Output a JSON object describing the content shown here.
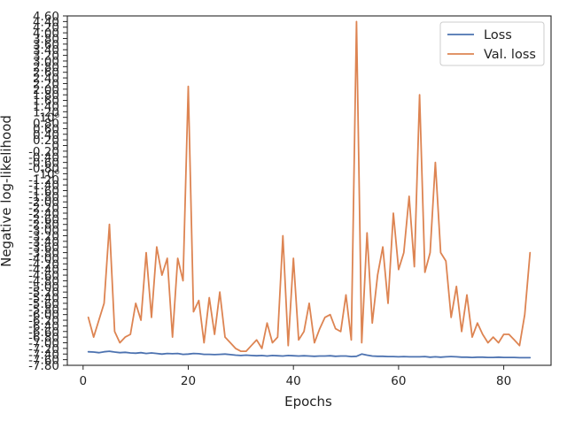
{
  "chart_data": {
    "type": "line",
    "title": "",
    "xlabel": "Epochs",
    "ylabel": "Negative log-likelihood",
    "xlim": [
      -3,
      89
    ],
    "xticks": [
      0,
      20,
      40,
      60,
      80
    ],
    "xtick_labels": [
      "0",
      "20",
      "40",
      "60",
      "80"
    ],
    "ylim": [
      -7.8,
      4.6
    ],
    "yscale": "symlog-like (garbled, overlapping tick labels)",
    "ytick_values": [
      -7.8,
      -7.6,
      -7.4,
      -7.2,
      -7.0,
      -6.8,
      -6.6,
      -6.4,
      -6.2,
      -6.0,
      -5.8,
      -5.6,
      -5.4,
      -5.2,
      -5.0,
      -4.8,
      -4.6,
      -4.4,
      -4.2,
      -4.0,
      -3.8,
      -3.6,
      -3.4,
      -3.2,
      -3.0,
      -2.8,
      -2.6,
      -2.4,
      -2.2,
      -2.0,
      -1.8,
      -1.6,
      -1.4,
      -1.2,
      -1.0,
      -0.8,
      -0.6,
      -0.4,
      -0.2,
      0,
      0.2,
      0.4,
      0.6,
      0.8,
      1.0,
      1.2,
      1.4,
      1.6,
      1.8,
      2.0,
      2.2,
      2.4,
      2.6,
      2.8,
      3.0,
      3.2,
      3.4,
      3.6,
      3.8,
      4.0,
      4.2,
      4.4,
      4.6
    ],
    "ytick_labels": [
      "-7.80",
      "-7.60",
      "-7.40",
      "-7.20",
      "-7.00",
      "-6.80",
      "-6.60",
      "-6.40",
      "-6.20",
      "-6.00",
      "-5.80",
      "-5.60",
      "-5.40",
      "-5.20",
      "-5.00",
      "-4.80",
      "-4.60",
      "-4.40",
      "-4.20",
      "-4.00",
      "-3.80",
      "-3.60",
      "-3.40",
      "-3.20",
      "-3.00",
      "-2.80",
      "-2.60",
      "-2.40",
      "-2.20",
      "-2.00",
      "-1.80",
      "-1.60",
      "-1.40",
      "-1.20",
      "-10⁰",
      "-0.80",
      "-0.60",
      "-0.40",
      "-0.20",
      "0",
      "0.20",
      "0.40",
      "0.60",
      "0.80",
      "10⁰",
      "1.20",
      "1.40",
      "1.60",
      "1.80",
      "2.00",
      "2.20",
      "2.40",
      "2.60",
      "2.80",
      "3.00",
      "3.20",
      "3.40",
      "3.60",
      "3.80",
      "4.00",
      "4.20",
      "4.40",
      "4.60"
    ],
    "grid": false,
    "legend_position": "top-right",
    "series": [
      {
        "name": "Loss",
        "color": "#4c72b0",
        "x": [
          1,
          2,
          3,
          4,
          5,
          6,
          7,
          8,
          9,
          10,
          11,
          12,
          13,
          14,
          15,
          16,
          17,
          18,
          19,
          20,
          21,
          22,
          23,
          24,
          25,
          26,
          27,
          28,
          29,
          30,
          31,
          32,
          33,
          34,
          35,
          36,
          37,
          38,
          39,
          40,
          41,
          42,
          43,
          44,
          45,
          46,
          47,
          48,
          49,
          50,
          51,
          52,
          53,
          54,
          55,
          56,
          57,
          58,
          59,
          60,
          61,
          62,
          63,
          64,
          65,
          66,
          67,
          68,
          69,
          70,
          71,
          72,
          73,
          74,
          75,
          76,
          77,
          78,
          79,
          80,
          81,
          82,
          83,
          84,
          85
        ],
        "y": [
          -7.32,
          -7.33,
          -7.35,
          -7.32,
          -7.3,
          -7.33,
          -7.35,
          -7.34,
          -7.36,
          -7.37,
          -7.35,
          -7.38,
          -7.36,
          -7.38,
          -7.4,
          -7.38,
          -7.39,
          -7.38,
          -7.41,
          -7.4,
          -7.38,
          -7.39,
          -7.41,
          -7.41,
          -7.42,
          -7.41,
          -7.4,
          -7.42,
          -7.44,
          -7.45,
          -7.44,
          -7.45,
          -7.46,
          -7.45,
          -7.47,
          -7.45,
          -7.46,
          -7.47,
          -7.45,
          -7.46,
          -7.47,
          -7.46,
          -7.47,
          -7.48,
          -7.47,
          -7.47,
          -7.46,
          -7.48,
          -7.47,
          -7.47,
          -7.49,
          -7.48,
          -7.4,
          -7.44,
          -7.47,
          -7.48,
          -7.48,
          -7.49,
          -7.49,
          -7.5,
          -7.49,
          -7.5,
          -7.5,
          -7.5,
          -7.49,
          -7.51,
          -7.5,
          -7.51,
          -7.5,
          -7.49,
          -7.5,
          -7.51,
          -7.51,
          -7.52,
          -7.51,
          -7.51,
          -7.52,
          -7.52,
          -7.51,
          -7.52,
          -7.52,
          -7.52,
          -7.53,
          -7.53,
          -7.53
        ]
      },
      {
        "name": "Val. loss",
        "color": "#dd8452",
        "x": [
          1,
          2,
          3,
          4,
          5,
          6,
          7,
          8,
          9,
          10,
          11,
          12,
          13,
          14,
          15,
          16,
          17,
          18,
          19,
          20,
          21,
          22,
          23,
          24,
          25,
          26,
          27,
          28,
          29,
          30,
          31,
          32,
          33,
          34,
          35,
          36,
          37,
          38,
          39,
          40,
          41,
          42,
          43,
          44,
          45,
          46,
          47,
          48,
          49,
          50,
          51,
          52,
          53,
          54,
          55,
          56,
          57,
          58,
          59,
          60,
          61,
          62,
          63,
          64,
          65,
          66,
          67,
          68,
          69,
          70,
          71,
          72,
          73,
          74,
          75,
          76,
          77,
          78,
          79,
          80,
          81,
          82,
          83,
          84,
          85
        ],
        "y": [
          -6.1,
          -6.8,
          -6.2,
          -5.6,
          -2.8,
          -6.6,
          -7.0,
          -6.8,
          -6.7,
          -5.6,
          -6.2,
          -3.8,
          -6.1,
          -3.6,
          -4.6,
          -4.0,
          -6.8,
          -4.0,
          -4.8,
          2.1,
          -5.9,
          -5.5,
          -7.0,
          -5.4,
          -6.7,
          -5.2,
          -6.8,
          -7.0,
          -7.2,
          -7.3,
          -7.3,
          -7.1,
          -6.9,
          -7.2,
          -6.3,
          -7.0,
          -6.8,
          -3.2,
          -7.1,
          -4.0,
          -6.9,
          -6.6,
          -5.6,
          -7.0,
          -6.5,
          -6.1,
          -6.0,
          -6.5,
          -6.6,
          -5.3,
          -6.9,
          4.4,
          -7.0,
          -3.1,
          -6.3,
          -4.6,
          -3.6,
          -5.6,
          -2.4,
          -4.4,
          -3.8,
          -1.8,
          -4.3,
          1.8,
          -4.5,
          -3.8,
          -0.6,
          -3.8,
          -4.1,
          -6.1,
          -5.0,
          -6.6,
          -5.3,
          -6.8,
          -6.3,
          -6.7,
          -7.0,
          -6.8,
          -7.0,
          -6.7,
          -6.7,
          -6.9,
          -7.1,
          -6.0,
          -3.8
        ]
      }
    ]
  }
}
